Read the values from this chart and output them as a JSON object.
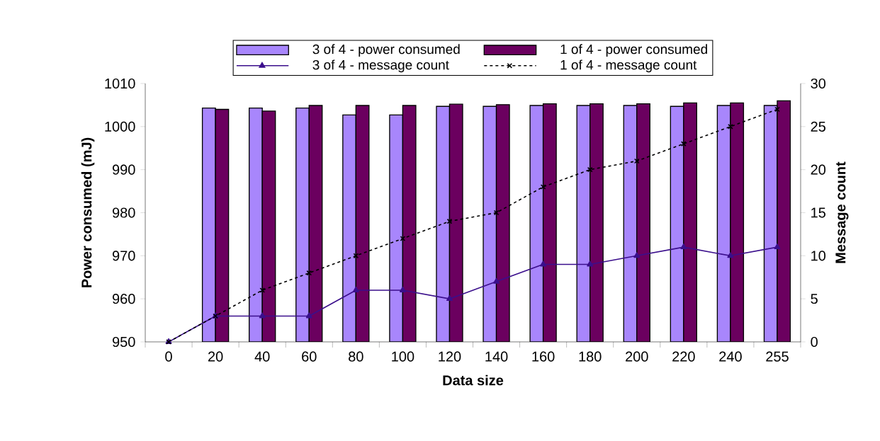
{
  "chart_data": {
    "type": "bar",
    "xlabel": "Data size",
    "ylabel": "Power consumed (mJ)",
    "y2label": "Message count",
    "categories": [
      "0",
      "20",
      "40",
      "60",
      "80",
      "100",
      "120",
      "140",
      "160",
      "180",
      "200",
      "220",
      "240",
      "255"
    ],
    "series": [
      {
        "name": "3 of 4 - power consumed",
        "color": "#a886fc",
        "values": [
          null,
          1004.3,
          1004.3,
          1004.3,
          1002.7,
          1002.7,
          1004.7,
          1004.7,
          1004.9,
          1004.9,
          1004.9,
          1004.7,
          1004.9,
          1004.9
        ]
      },
      {
        "name": "1 of 4  - power consumed",
        "color": "#6b005f",
        "values": [
          null,
          1004.0,
          1003.6,
          1004.9,
          1004.9,
          1004.9,
          1005.2,
          1005.1,
          1005.3,
          1005.3,
          1005.3,
          1005.5,
          1005.5,
          1006.0
        ]
      },
      {
        "name": "3 of 4 - message count",
        "type": "line",
        "axis": "y2",
        "color": "#3b0f8c",
        "marker": "triangle",
        "line_style": "solid",
        "values": [
          0,
          3,
          3,
          3,
          6,
          6,
          5,
          7,
          9,
          9,
          10,
          11,
          10,
          11
        ]
      },
      {
        "name": "1 of 4 - message count",
        "type": "line",
        "axis": "y2",
        "color": "#000000",
        "marker": "cross",
        "line_style": "dashed",
        "values": [
          0,
          3,
          6,
          8,
          10,
          12,
          14,
          15,
          18,
          20,
          21,
          23,
          25,
          27
        ]
      }
    ],
    "ylim": [
      950,
      1010
    ],
    "yticks": [
      950,
      960,
      970,
      980,
      990,
      1000,
      1010
    ],
    "y2lim": [
      0,
      30
    ],
    "y2ticks": [
      0,
      5,
      10,
      15,
      20,
      25,
      30
    ],
    "legend": "top",
    "grid": false
  }
}
